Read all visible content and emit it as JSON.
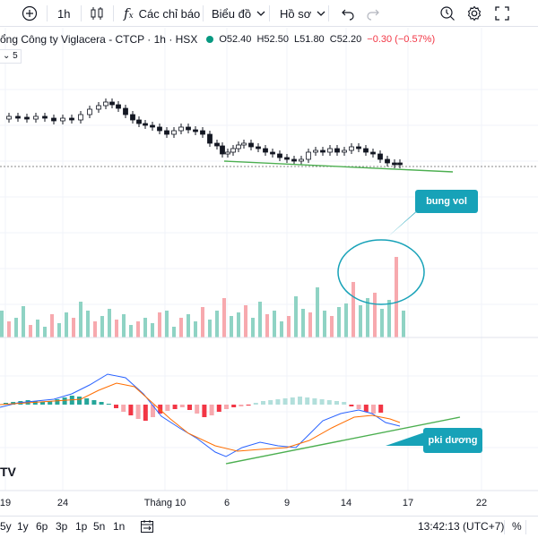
{
  "toolbar": {
    "add_symbol_icon": "plus-circle-icon",
    "interval": "1h",
    "bar_style_icon": "candles-icon",
    "indicators_label": "Các chỉ báo",
    "layout_label": "Biểu đồ",
    "profile_label": "Hồ sơ",
    "undo_icon": "undo-icon",
    "redo_icon": "redo-icon",
    "alert_icon": "alert-clock-icon",
    "settings_icon": "gear-icon",
    "fullscreen_icon": "fullscreen-icon"
  },
  "legend": {
    "title": "ổng Công ty Viglacera - CTCP · 1h · HSX",
    "open": "O52.40",
    "high": "H52.50",
    "low": "L51.80",
    "close": "C52.20",
    "change": "−0.30 (−0.57%)",
    "indicator_box": "5"
  },
  "time_axis": [
    "19",
    "24",
    "Tháng 10",
    "6",
    "9",
    "14",
    "17",
    "22"
  ],
  "callouts": {
    "volume_note": "bung vol",
    "macd_note": "pki dương"
  },
  "logo_text": "TV",
  "bottombar": {
    "ranges": [
      "5y",
      "1y",
      "6p",
      "3p",
      "1p",
      "5n",
      "1n"
    ],
    "date_range_icon": "calendar-range-icon",
    "clock": "13:42:13 (UTC+7)",
    "percent": "%"
  },
  "colors": {
    "up": "#089981",
    "down": "#f23645",
    "volume_up": "#8fd3c4",
    "volume_down": "#f7a9ae",
    "macd_line": "#2962ff",
    "signal_line": "#ff6d00",
    "trendline": "#4caf50",
    "callout": "#17a2b8"
  },
  "chart_data": {
    "type": "candlestick",
    "ohlc_current": {
      "open": 52.4,
      "high": 52.5,
      "low": 51.8,
      "close": 52.2
    },
    "change": -0.3,
    "change_pct": -0.57
  }
}
